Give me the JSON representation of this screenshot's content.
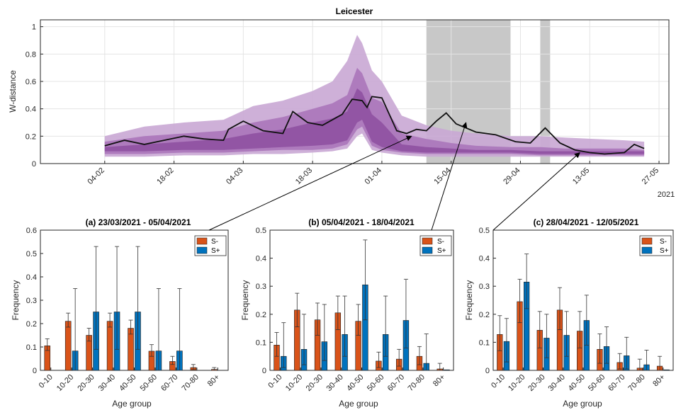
{
  "chart_data": [
    {
      "type": "line",
      "title": "Leicester",
      "ylabel": "W-distance",
      "xlabel": "",
      "year_label": "2021",
      "ylim": [
        0,
        1.05
      ],
      "yticks": [
        0,
        0.2,
        0.4,
        0.6,
        0.8,
        1
      ],
      "ytick_labels": [
        "0",
        "0.2",
        "0.4",
        "0.6",
        "0.8",
        "1"
      ],
      "xlim": [
        "2021-01-22",
        "2021-05-29"
      ],
      "xticks": [
        "2021-02-04",
        "2021-02-18",
        "2021-03-04",
        "2021-03-18",
        "2021-04-01",
        "2021-04-15",
        "2021-04-29",
        "2021-05-13",
        "2021-05-27"
      ],
      "xtick_labels": [
        "04-02",
        "18-02",
        "04-03",
        "18-03",
        "01-04",
        "15-04",
        "29-04",
        "13-05",
        "27-05"
      ],
      "grid": true,
      "shaded_periods": [
        [
          "2021-04-10",
          "2021-04-27"
        ],
        [
          "2021-05-03",
          "2021-05-05"
        ]
      ],
      "series": [
        {
          "x": [
            "2021-02-04",
            "2021-02-08",
            "2021-02-12",
            "2021-02-16",
            "2021-02-20",
            "2021-02-24",
            "2021-02-28",
            "2021-03-01",
            "2021-03-04",
            "2021-03-08",
            "2021-03-12",
            "2021-03-14",
            "2021-03-17",
            "2021-03-20",
            "2021-03-24",
            "2021-03-26",
            "2021-03-28",
            "2021-03-29",
            "2021-03-30",
            "2021-04-01",
            "2021-04-04",
            "2021-04-06",
            "2021-04-08",
            "2021-04-10",
            "2021-04-12",
            "2021-04-14",
            "2021-04-16",
            "2021-04-20",
            "2021-04-24",
            "2021-04-28",
            "2021-05-01",
            "2021-05-04",
            "2021-05-07",
            "2021-05-10",
            "2021-05-13",
            "2021-05-16",
            "2021-05-20",
            "2021-05-22",
            "2021-05-24"
          ],
          "values": [
            0.13,
            0.17,
            0.14,
            0.17,
            0.2,
            0.18,
            0.17,
            0.25,
            0.31,
            0.24,
            0.22,
            0.38,
            0.3,
            0.28,
            0.36,
            0.47,
            0.46,
            0.41,
            0.49,
            0.48,
            0.24,
            0.22,
            0.25,
            0.24,
            0.31,
            0.37,
            0.29,
            0.23,
            0.21,
            0.16,
            0.15,
            0.26,
            0.15,
            0.1,
            0.08,
            0.07,
            0.08,
            0.14,
            0.11
          ]
        }
      ],
      "bands": {
        "x": [
          "2021-02-04",
          "2021-02-12",
          "2021-02-20",
          "2021-02-28",
          "2021-03-06",
          "2021-03-12",
          "2021-03-18",
          "2021-03-22",
          "2021-03-25",
          "2021-03-27",
          "2021-03-28",
          "2021-03-30",
          "2021-04-01",
          "2021-04-05",
          "2021-04-10",
          "2021-04-15",
          "2021-04-20",
          "2021-04-27",
          "2021-05-03",
          "2021-05-08",
          "2021-05-14",
          "2021-05-20",
          "2021-05-24"
        ],
        "outer_low": [
          0.05,
          0.05,
          0.06,
          0.06,
          0.07,
          0.07,
          0.08,
          0.09,
          0.11,
          0.2,
          0.22,
          0.1,
          0.08,
          0.06,
          0.05,
          0.05,
          0.05,
          0.05,
          0.05,
          0.05,
          0.05,
          0.05,
          0.05
        ],
        "outer_high": [
          0.2,
          0.27,
          0.3,
          0.32,
          0.42,
          0.46,
          0.53,
          0.6,
          0.75,
          0.94,
          0.88,
          0.68,
          0.6,
          0.35,
          0.28,
          0.24,
          0.22,
          0.2,
          0.2,
          0.19,
          0.18,
          0.17,
          0.16
        ],
        "inner_low": [
          0.07,
          0.07,
          0.08,
          0.08,
          0.09,
          0.1,
          0.1,
          0.11,
          0.14,
          0.25,
          0.27,
          0.13,
          0.1,
          0.08,
          0.07,
          0.07,
          0.07,
          0.07,
          0.06,
          0.06,
          0.06,
          0.06,
          0.06
        ],
        "inner_high": [
          0.16,
          0.2,
          0.22,
          0.24,
          0.3,
          0.34,
          0.4,
          0.44,
          0.5,
          0.7,
          0.66,
          0.48,
          0.45,
          0.22,
          0.18,
          0.15,
          0.13,
          0.12,
          0.12,
          0.11,
          0.11,
          0.11,
          0.1
        ],
        "core_low": [
          0.09,
          0.09,
          0.1,
          0.1,
          0.11,
          0.12,
          0.13,
          0.14,
          0.17,
          0.3,
          0.32,
          0.16,
          0.12,
          0.09,
          0.08,
          0.08,
          0.08,
          0.08,
          0.07,
          0.07,
          0.07,
          0.07,
          0.07
        ],
        "core_high": [
          0.12,
          0.14,
          0.16,
          0.18,
          0.22,
          0.25,
          0.3,
          0.33,
          0.38,
          0.55,
          0.52,
          0.36,
          0.3,
          0.14,
          0.12,
          0.11,
          0.1,
          0.1,
          0.09,
          0.09,
          0.09,
          0.09,
          0.09
        ]
      }
    },
    {
      "type": "bar",
      "title": "(a) 23/03/2021 - 05/04/2021",
      "xlabel": "Age group",
      "ylabel": "Frequency",
      "ylim": [
        0,
        0.6
      ],
      "yticks": [
        0,
        0.1,
        0.2,
        0.3,
        0.4,
        0.5,
        0.6
      ],
      "ytick_labels": [
        "0",
        "0.1",
        "0.2",
        "0.3",
        "0.4",
        "0.5",
        "0.6"
      ],
      "legend_position": "top-right",
      "categories": [
        "0-10",
        "10-20",
        "20-30",
        "30-40",
        "40-50",
        "50-60",
        "60-70",
        "70-80",
        "80+"
      ],
      "series": [
        {
          "name": "S-",
          "color": "#d95319",
          "values": [
            0.105,
            0.21,
            0.15,
            0.21,
            0.18,
            0.082,
            0.038,
            0.012,
            0.004
          ],
          "err_low": [
            0.085,
            0.185,
            0.125,
            0.185,
            0.155,
            0.06,
            0.025,
            0.003,
            0.0
          ],
          "err_high": [
            0.135,
            0.245,
            0.18,
            0.245,
            0.215,
            0.11,
            0.06,
            0.025,
            0.012
          ]
        },
        {
          "name": "S+",
          "color": "#0072bd",
          "values": [
            0.0,
            0.083,
            0.25,
            0.25,
            0.25,
            0.083,
            0.083,
            0.0,
            0.0
          ],
          "err_low": [
            0.0,
            0.0,
            0.09,
            0.09,
            0.09,
            0.0,
            0.0,
            0.0,
            0.0
          ],
          "err_high": [
            0.0,
            0.35,
            0.53,
            0.53,
            0.53,
            0.35,
            0.35,
            0.0,
            0.0
          ]
        }
      ]
    },
    {
      "type": "bar",
      "title": "(b) 05/04/2021 - 18/04/2021",
      "xlabel": "Age group",
      "ylabel": "Frequency",
      "ylim": [
        0,
        0.5
      ],
      "yticks": [
        0,
        0.1,
        0.2,
        0.3,
        0.4,
        0.5
      ],
      "ytick_labels": [
        "0",
        "0.1",
        "0.2",
        "0.3",
        "0.4",
        "0.5"
      ],
      "legend_position": "top-right",
      "categories": [
        "0-10",
        "10-20",
        "20-30",
        "30-40",
        "40-50",
        "50-60",
        "60-70",
        "70-80",
        "80+"
      ],
      "series": [
        {
          "name": "S-",
          "color": "#d95319",
          "values": [
            0.09,
            0.215,
            0.18,
            0.205,
            0.175,
            0.033,
            0.04,
            0.05,
            0.005
          ],
          "err_low": [
            0.05,
            0.155,
            0.125,
            0.145,
            0.125,
            0.01,
            0.015,
            0.02,
            0.0
          ],
          "err_high": [
            0.135,
            0.275,
            0.24,
            0.265,
            0.235,
            0.065,
            0.075,
            0.085,
            0.025
          ]
        },
        {
          "name": "S+",
          "color": "#0072bd",
          "values": [
            0.05,
            0.075,
            0.102,
            0.128,
            0.305,
            0.128,
            0.178,
            0.025,
            0.002
          ],
          "err_low": [
            0.01,
            0.02,
            0.035,
            0.05,
            0.18,
            0.05,
            0.08,
            0.0,
            0.0
          ],
          "err_high": [
            0.17,
            0.2,
            0.235,
            0.265,
            0.465,
            0.265,
            0.325,
            0.13,
            0.0
          ]
        }
      ]
    },
    {
      "type": "bar",
      "title": "(c) 28/04/2021 - 12/05/2021",
      "xlabel": "Age group",
      "ylabel": "Frequency",
      "ylim": [
        0,
        0.5
      ],
      "yticks": [
        0,
        0.1,
        0.2,
        0.3,
        0.4,
        0.5
      ],
      "ytick_labels": [
        "0",
        "0.1",
        "0.2",
        "0.3",
        "0.4",
        "0.5"
      ],
      "legend_position": "top-right",
      "categories": [
        "0-10",
        "10-20",
        "20-30",
        "30-40",
        "40-50",
        "50-60",
        "60-70",
        "70-80",
        "80+"
      ],
      "series": [
        {
          "name": "S-",
          "color": "#d95319",
          "values": [
            0.128,
            0.245,
            0.143,
            0.215,
            0.14,
            0.075,
            0.028,
            0.008,
            0.015
          ],
          "err_low": [
            0.07,
            0.17,
            0.08,
            0.145,
            0.08,
            0.025,
            0.005,
            0.0,
            0.0
          ],
          "err_high": [
            0.195,
            0.325,
            0.21,
            0.295,
            0.21,
            0.13,
            0.06,
            0.04,
            0.05
          ]
        },
        {
          "name": "S+",
          "color": "#0072bd",
          "values": [
            0.103,
            0.315,
            0.115,
            0.125,
            0.178,
            0.085,
            0.052,
            0.02,
            0.002
          ],
          "err_low": [
            0.03,
            0.22,
            0.045,
            0.05,
            0.09,
            0.025,
            0.005,
            0.0,
            0.0
          ],
          "err_high": [
            0.185,
            0.415,
            0.2,
            0.21,
            0.268,
            0.155,
            0.118,
            0.072,
            0.0
          ]
        }
      ]
    }
  ]
}
